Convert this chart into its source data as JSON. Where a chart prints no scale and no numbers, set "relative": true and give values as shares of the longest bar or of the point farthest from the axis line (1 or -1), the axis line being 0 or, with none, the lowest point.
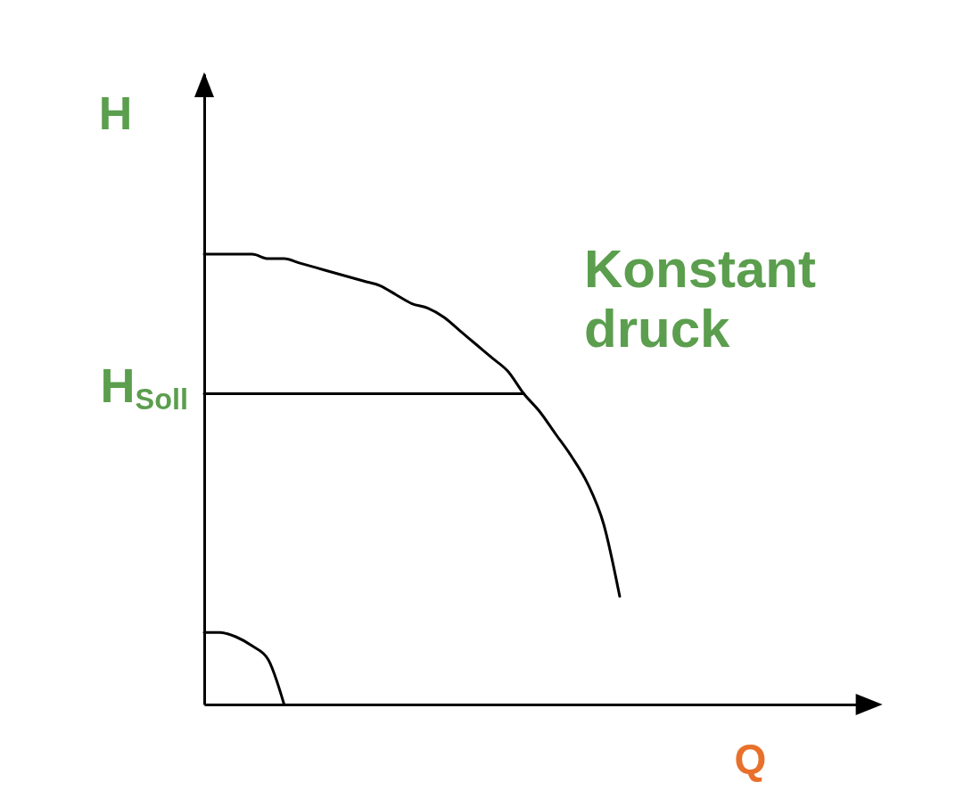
{
  "chart_data": {
    "type": "line",
    "relative": true,
    "ylabel": "H",
    "xlabel": "Q",
    "annotations": [
      "H$_{Soll}$",
      "Konstant druck"
    ],
    "categories": [
      null,
      null,
      null,
      null,
      null,
      null,
      null,
      null,
      null,
      null,
      null,
      null,
      null,
      null,
      null,
      null,
      null,
      null,
      null,
      null,
      null,
      null,
      null,
      null,
      null,
      null,
      null,
      null,
      null,
      null,
      null,
      null,
      null,
      null,
      null,
      null,
      null,
      null,
      null,
      null,
      null,
      null,
      null
    ],
    "series": [
      {
        "color": "#000000",
        "values": [
          1.0,
          1.0,
          1.0,
          1.0,
          0.99,
          0.99,
          0.98,
          0.97,
          0.96,
          0.95,
          0.94,
          0.93,
          0.91,
          0.89,
          0.88,
          0.86,
          0.83,
          0.8,
          0.77,
          0.74,
          0.69,
          0.65,
          0.6,
          0.55,
          0.49,
          0.4,
          0.24,
          null,
          null,
          null,
          null,
          null,
          null,
          null,
          null,
          null,
          null,
          null,
          null,
          null,
          null,
          null,
          null
        ]
      },
      {
        "color": "#000000",
        "values": [
          0.69,
          0.69,
          0.69,
          0.69,
          0.69,
          0.69,
          0.69,
          0.69,
          0.69,
          0.69,
          0.69,
          0.69,
          0.69,
          0.69,
          0.69,
          0.69,
          0.69,
          0.69,
          0.69,
          0.69,
          0.69,
          null,
          null,
          null,
          null,
          null,
          null,
          null,
          null,
          null,
          null,
          null,
          null,
          null,
          null,
          null,
          null,
          null,
          null,
          null,
          null,
          null,
          null
        ]
      },
      {
        "color": "#000000",
        "values": [
          0.16,
          0.16,
          0.15,
          0.13,
          0.1,
          0,
          null,
          null,
          null,
          null,
          null,
          null,
          null,
          null,
          null,
          null,
          null,
          null,
          null,
          null,
          null,
          null,
          null,
          null,
          null,
          null,
          null,
          null,
          null,
          null,
          null,
          null,
          null,
          null,
          null,
          null,
          null,
          null,
          null,
          null,
          null,
          null,
          null
        ]
      }
    ]
  }
}
